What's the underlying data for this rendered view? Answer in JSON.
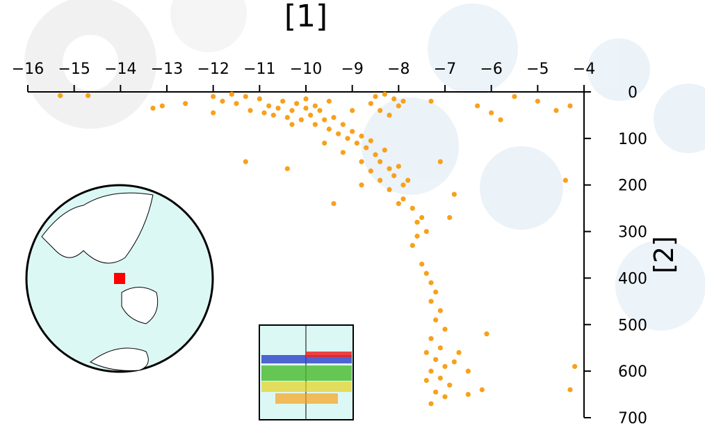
{
  "chart_data": {
    "type": "scatter",
    "title": "[1]",
    "y_label": "[2]",
    "color": "#f7a11a",
    "xlim": [
      -16,
      -4
    ],
    "ylim": [
      0,
      700
    ],
    "y_inverted": true,
    "xticks": [
      {
        "value": -16,
        "label": "−16"
      },
      {
        "value": -15,
        "label": "−15"
      },
      {
        "value": -14,
        "label": "−14"
      },
      {
        "value": -13,
        "label": "−13"
      },
      {
        "value": -12,
        "label": "−12"
      },
      {
        "value": -11,
        "label": "−11"
      },
      {
        "value": -10,
        "label": "−10"
      },
      {
        "value": -9,
        "label": "−9"
      },
      {
        "value": -8,
        "label": "−8"
      },
      {
        "value": -7,
        "label": "−7"
      },
      {
        "value": -6,
        "label": "−6"
      },
      {
        "value": -5,
        "label": "−5"
      },
      {
        "value": -4,
        "label": "−4"
      }
    ],
    "yticks": [
      0,
      100,
      200,
      300,
      400,
      500,
      600,
      700
    ],
    "x": [
      -15.3,
      -14.7,
      -13.1,
      -12.6,
      -12,
      -11.8,
      -11.6,
      -11.5,
      -11.3,
      -11.2,
      -11.0,
      -10.9,
      -10.8,
      -10.7,
      -10.6,
      -10.5,
      -10.4,
      -10.3,
      -10.2,
      -10.1,
      -10.0,
      -10.0,
      -9.9,
      -9.8,
      -9.7,
      -9.6,
      -9.5,
      -9.4,
      -9.3,
      -9.2,
      -9.1,
      -9.0,
      -8.9,
      -8.8,
      -8.7,
      -8.6,
      -8.5,
      -8.4,
      -8.3,
      -8.2,
      -8.1,
      -8.0,
      -7.9,
      -7.8,
      -7.9,
      -7.7,
      -7.6,
      -7.5,
      -7.6,
      -7.7,
      -7.4,
      -7.5,
      -7.4,
      -7.3,
      -7.2,
      -7.3,
      -7.1,
      -7.2,
      -7.0,
      -7.3,
      -7.1,
      -7.4,
      -7.2,
      -7.0,
      -7.3,
      -7.1,
      -7.4,
      -6.9,
      -7.2,
      -7.0,
      -7.3,
      -6.8,
      -6.7,
      -6.5,
      -8.5,
      -8.3,
      -8.1,
      -8.0,
      -8.4,
      -8.2,
      -7.9,
      -8.6,
      -9.5,
      -9.0,
      -9.8,
      -10.3,
      -9.6,
      -9.2,
      -8.8,
      -8.6,
      -8.4,
      -8.2,
      -8.0,
      -11.3,
      -10.4,
      -9.4,
      -8.8,
      -7.1,
      -6.8,
      -6.9,
      -6.1,
      -6.2,
      -6.5,
      -4.2,
      -4.3,
      -4.4,
      -4.6,
      -4.3,
      -5.0,
      -5.5,
      -6.0,
      -6.3,
      -5.8,
      -7.3,
      -12.0,
      -13.3
    ],
    "y": [
      8,
      8,
      30,
      25,
      10,
      20,
      5,
      25,
      10,
      40,
      15,
      45,
      30,
      50,
      35,
      20,
      55,
      40,
      25,
      60,
      35,
      15,
      50,
      70,
      40,
      60,
      80,
      55,
      90,
      70,
      100,
      85,
      110,
      95,
      120,
      105,
      135,
      150,
      125,
      165,
      180,
      160,
      200,
      190,
      230,
      250,
      280,
      270,
      310,
      330,
      300,
      370,
      390,
      410,
      430,
      450,
      470,
      490,
      510,
      530,
      550,
      560,
      575,
      590,
      600,
      615,
      620,
      630,
      645,
      655,
      670,
      580,
      560,
      600,
      10,
      5,
      15,
      30,
      40,
      50,
      20,
      25,
      20,
      40,
      30,
      70,
      110,
      130,
      150,
      170,
      190,
      210,
      240,
      150,
      165,
      240,
      200,
      150,
      220,
      270,
      520,
      640,
      650,
      590,
      640,
      190,
      40,
      30,
      20,
      10,
      45,
      30,
      60,
      20,
      45,
      35
    ]
  }
}
